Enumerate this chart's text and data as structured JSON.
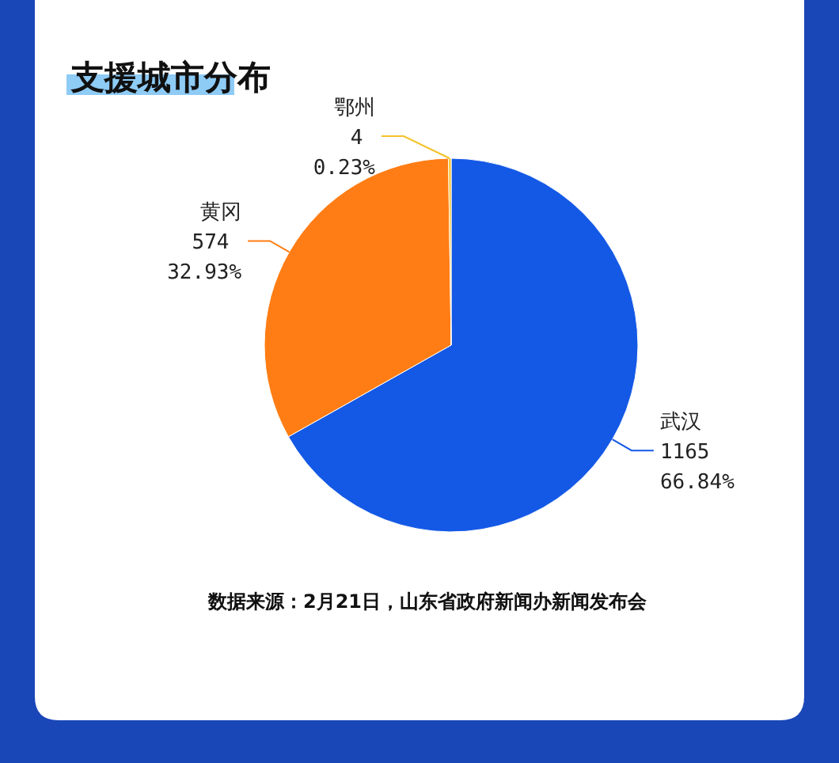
{
  "chart_data": {
    "type": "pie",
    "title": "支援城市分布",
    "categories": [
      "武汉",
      "黄冈",
      "鄂州"
    ],
    "values": [
      1165,
      574,
      4
    ],
    "colors": [
      "#1459e6",
      "#ff7d14",
      "#f5c22b"
    ],
    "value_labels": [
      "1165\n66.84%",
      "574\n32.93%",
      "4\n0.23%"
    ],
    "annotations": [
      "数据来源：2月21日，山东省政府新闻办新闻发布会"
    ]
  }
}
